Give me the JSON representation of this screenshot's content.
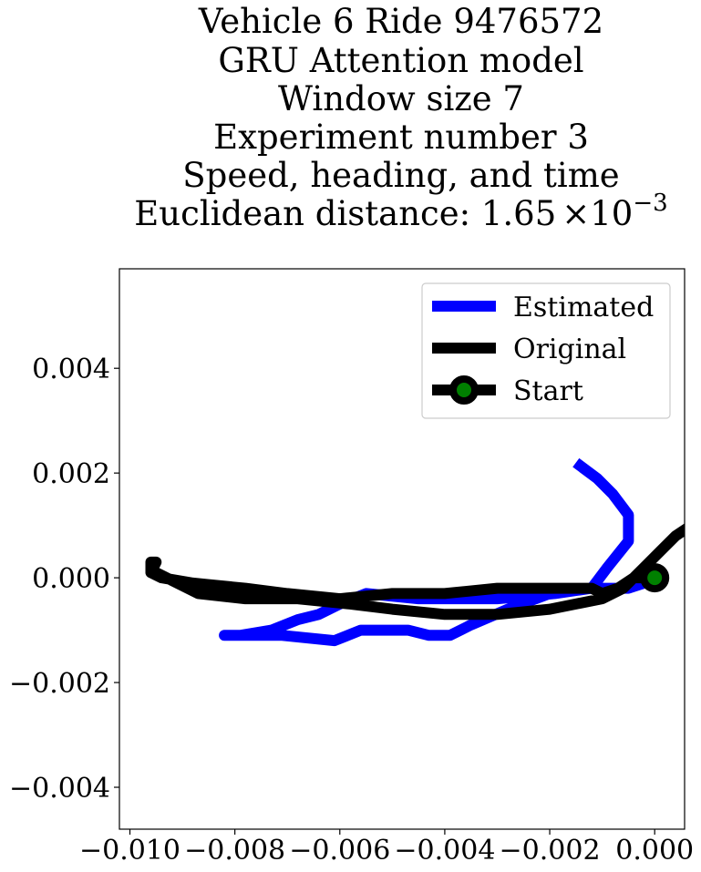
{
  "chart_data": {
    "type": "line",
    "title_lines": [
      "Vehicle 6 Ride 9476572",
      "GRU Attention model",
      "Window size 7",
      "Experiment number 3",
      "Speed, heading, and time"
    ],
    "title_last_prefix": "Euclidean distance: 1.65",
    "title_last_times": "×",
    "title_last_base": "10",
    "title_last_exponent": "−3",
    "xlabel": "",
    "ylabel": "",
    "xlim": [
      -0.0102,
      0.00057
    ],
    "ylim": [
      -0.0048,
      0.0059
    ],
    "x_ticks": [
      -0.01,
      -0.008,
      -0.006,
      -0.004,
      -0.002,
      0.0
    ],
    "x_tick_labels": [
      "−0.010",
      "−0.008",
      "−0.006",
      "−0.004",
      "−0.002",
      "0.000"
    ],
    "y_ticks": [
      0.004,
      0.002,
      0.0,
      -0.002,
      -0.004
    ],
    "y_tick_labels": [
      "0.004",
      "0.002",
      "0.000",
      "−0.002",
      "−0.004"
    ],
    "grid": false,
    "legend_position": "top-right",
    "series": [
      {
        "name": "Estimated",
        "color": "#0000ff",
        "points": [
          [
            -0.0015,
            0.0022
          ],
          [
            -0.0011,
            0.0019
          ],
          [
            -0.0008,
            0.0016
          ],
          [
            -0.0005,
            0.0012
          ],
          [
            -0.0005,
            0.0007
          ],
          [
            -0.0009,
            0.0002
          ],
          [
            -0.0012,
            -0.0002
          ],
          [
            -0.0019,
            -0.0003
          ],
          [
            -0.003,
            -0.0004
          ],
          [
            -0.0045,
            -0.0004
          ],
          [
            -0.0055,
            -0.0003
          ],
          [
            -0.006,
            -0.0005
          ],
          [
            -0.0064,
            -0.0007
          ],
          [
            -0.0068,
            -0.0008
          ],
          [
            -0.0073,
            -0.001
          ],
          [
            -0.0079,
            -0.0011
          ],
          [
            -0.0082,
            -0.0011
          ],
          [
            -0.008,
            -0.0011
          ],
          [
            -0.0077,
            -0.0011
          ],
          [
            -0.0071,
            -0.0011
          ],
          [
            -0.0061,
            -0.0012
          ],
          [
            -0.0056,
            -0.001
          ],
          [
            -0.0054,
            -0.001
          ],
          [
            -0.0047,
            -0.001
          ],
          [
            -0.0043,
            -0.0011
          ],
          [
            -0.0039,
            -0.0011
          ],
          [
            -0.0035,
            -0.0009
          ],
          [
            -0.0028,
            -0.0006
          ],
          [
            -0.002,
            -0.0003
          ],
          [
            -0.0012,
            -0.0002
          ],
          [
            -0.0005,
            -0.0002
          ],
          [
            -0.0002,
            -0.0001
          ],
          [
            0.0,
            0.0
          ]
        ]
      },
      {
        "name": "Original",
        "color": "#000000",
        "points": [
          [
            0.0013,
            0.0011
          ],
          [
            0.0011,
            0.0012
          ],
          [
            0.0009,
            0.0012
          ],
          [
            0.0008,
            0.0011
          ],
          [
            0.0007,
            0.001
          ],
          [
            0.0004,
            0.0008
          ],
          [
            0.0001,
            0.0005
          ],
          [
            -0.0002,
            0.0002
          ],
          [
            -0.0006,
            -0.0002
          ],
          [
            -0.001,
            -0.0004
          ],
          [
            -0.002,
            -0.0006
          ],
          [
            -0.003,
            -0.0007
          ],
          [
            -0.004,
            -0.0007
          ],
          [
            -0.005,
            -0.0006
          ],
          [
            -0.0058,
            -0.0005
          ],
          [
            -0.0068,
            -0.0004
          ],
          [
            -0.0078,
            -0.0004
          ],
          [
            -0.0087,
            -0.0003
          ],
          [
            -0.0091,
            -0.0001
          ],
          [
            -0.0093,
            0.0
          ],
          [
            -0.0095,
            0.0001
          ],
          [
            -0.0096,
            0.0001
          ],
          [
            -0.0096,
            0.0003
          ],
          [
            -0.0095,
            0.0003
          ],
          [
            -0.0096,
            0.0001
          ],
          [
            -0.0094,
            0.0
          ],
          [
            -0.0088,
            -0.0001
          ],
          [
            -0.0078,
            -0.0002
          ],
          [
            -0.007,
            -0.0003
          ],
          [
            -0.006,
            -0.0004
          ],
          [
            -0.005,
            -0.0003
          ],
          [
            -0.004,
            -0.0003
          ],
          [
            -0.003,
            -0.0002
          ],
          [
            -0.002,
            -0.0002
          ],
          [
            -0.0012,
            -0.0002
          ],
          [
            -0.001,
            -0.0003
          ],
          [
            -0.0007,
            -0.0002
          ],
          [
            -0.0004,
            0.0
          ],
          [
            0.0,
            0.0
          ]
        ]
      }
    ],
    "start_marker": {
      "name": "Start",
      "x": 0.0,
      "y": 0.0,
      "edge_color": "#000000",
      "face_color": "#008000"
    },
    "legend_labels": [
      "Estimated",
      "Original",
      "Start"
    ]
  }
}
